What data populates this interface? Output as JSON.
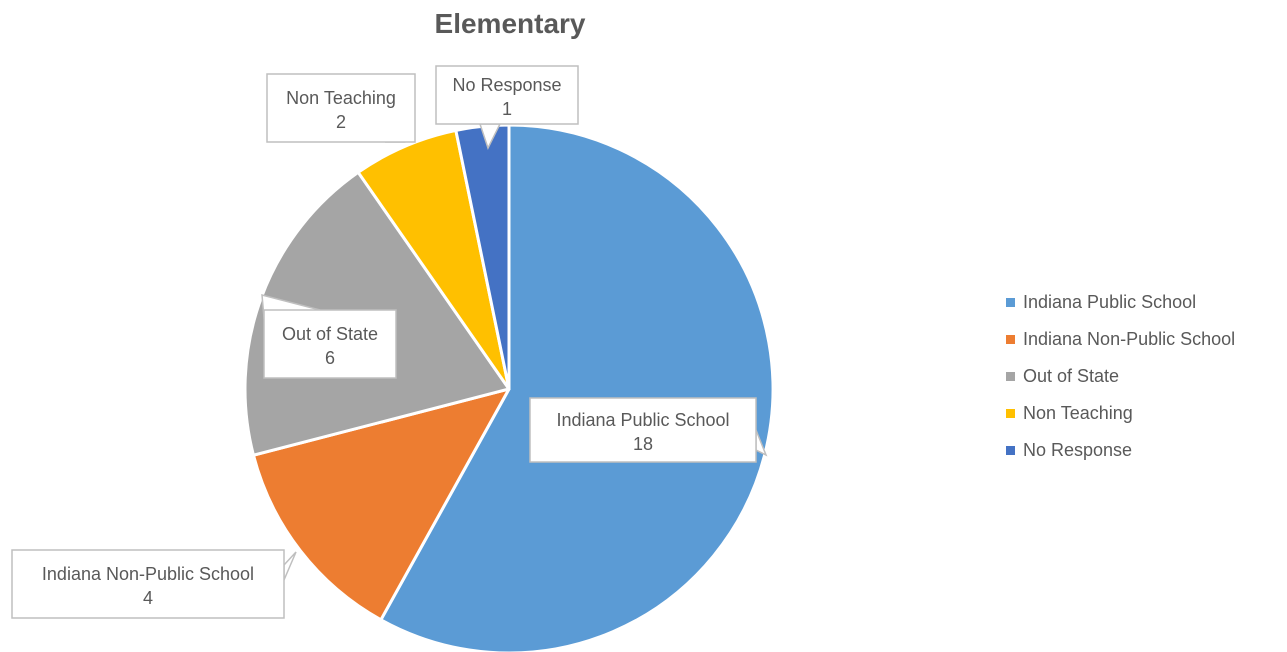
{
  "chart_data": {
    "type": "pie",
    "title": "Elementary",
    "slices": [
      {
        "label": "Indiana Public School",
        "value": 18,
        "color": "#5B9BD5"
      },
      {
        "label": "Indiana Non-Public School",
        "value": 4,
        "color": "#ED7D31"
      },
      {
        "label": "Out of State",
        "value": 6,
        "color": "#A5A5A5"
      },
      {
        "label": "Non Teaching",
        "value": 2,
        "color": "#FFC000"
      },
      {
        "label": "No Response",
        "value": 1,
        "color": "#4472C4"
      }
    ],
    "legend_position": "right",
    "data_labels": "callouts with category name and value"
  }
}
